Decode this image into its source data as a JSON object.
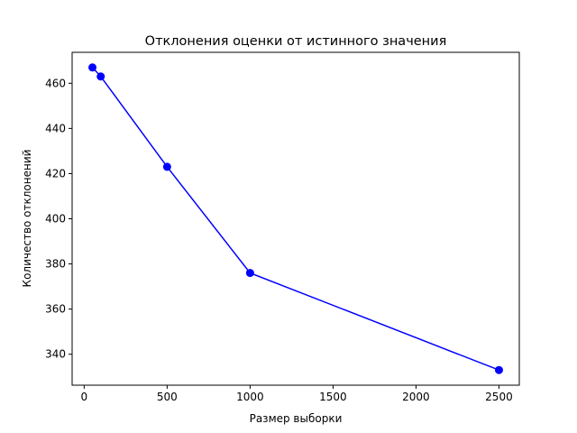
{
  "chart_data": {
    "type": "line",
    "title": "Отклонения оценки от истинного значения",
    "xlabel": "Размер выборки",
    "ylabel": "Количество отклонений",
    "x": [
      50,
      100,
      500,
      1000,
      2500
    ],
    "series": [
      {
        "values": [
          467,
          463,
          423,
          376,
          333
        ],
        "color": "#0000ff",
        "marker": "circle"
      }
    ],
    "xlim": [
      -72.5,
      2622.5
    ],
    "ylim": [
      326.3,
      473.7
    ],
    "xticks": [
      0,
      500,
      1000,
      1500,
      2000,
      2500
    ],
    "yticks": [
      340,
      360,
      380,
      400,
      420,
      440,
      460
    ],
    "grid": false,
    "legend": null
  }
}
